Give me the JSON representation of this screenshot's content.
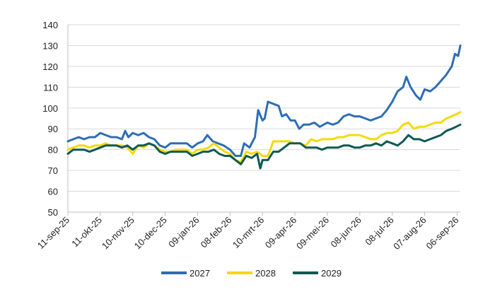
{
  "chart_data": {
    "type": "line",
    "ylim": [
      50,
      140
    ],
    "y_ticks": [
      50,
      60,
      70,
      80,
      90,
      100,
      110,
      120,
      130,
      140
    ],
    "x_range": [
      "2025-09-11",
      "2026-09-09"
    ],
    "x_ticks": [
      {
        "date": "2025-09-11",
        "label": "11-sep-25"
      },
      {
        "date": "2025-10-11",
        "label": "11-okt-25"
      },
      {
        "date": "2025-11-10",
        "label": "10-nov-25"
      },
      {
        "date": "2025-12-10",
        "label": "10-dec-25"
      },
      {
        "date": "2026-01-09",
        "label": "09-jan-26"
      },
      {
        "date": "2026-02-08",
        "label": "08-feb-26"
      },
      {
        "date": "2026-03-10",
        "label": "10-mrt-26"
      },
      {
        "date": "2026-04-09",
        "label": "09-apr-26"
      },
      {
        "date": "2026-05-09",
        "label": "09-mei-26"
      },
      {
        "date": "2026-06-08",
        "label": "08-jun-26"
      },
      {
        "date": "2026-07-08",
        "label": "08-jul-26"
      },
      {
        "date": "2026-08-07",
        "label": "07-aug-26"
      },
      {
        "date": "2026-09-06",
        "label": "06-sep-26"
      }
    ],
    "grid": "horizontal",
    "legend_position": "bottom",
    "series": [
      {
        "name": "2027",
        "color": "#2E6DB4",
        "points": [
          [
            "2025-09-11",
            84
          ],
          [
            "2025-09-16",
            85
          ],
          [
            "2025-09-21",
            86
          ],
          [
            "2025-09-26",
            85
          ],
          [
            "2025-10-01",
            86
          ],
          [
            "2025-10-06",
            86
          ],
          [
            "2025-10-11",
            88
          ],
          [
            "2025-10-16",
            87
          ],
          [
            "2025-10-21",
            86
          ],
          [
            "2025-10-26",
            86
          ],
          [
            "2025-10-31",
            85
          ],
          [
            "2025-11-03",
            89
          ],
          [
            "2025-11-06",
            86
          ],
          [
            "2025-11-10",
            88
          ],
          [
            "2025-11-15",
            87
          ],
          [
            "2025-11-20",
            88
          ],
          [
            "2025-11-25",
            86
          ],
          [
            "2025-11-30",
            85
          ],
          [
            "2025-12-05",
            82
          ],
          [
            "2025-12-10",
            81
          ],
          [
            "2025-12-15",
            83
          ],
          [
            "2025-12-20",
            83
          ],
          [
            "2025-12-25",
            83
          ],
          [
            "2025-12-30",
            83
          ],
          [
            "2026-01-04",
            81
          ],
          [
            "2026-01-09",
            83
          ],
          [
            "2026-01-14",
            84
          ],
          [
            "2026-01-18",
            87
          ],
          [
            "2026-01-23",
            84
          ],
          [
            "2026-01-28",
            83
          ],
          [
            "2026-02-02",
            82
          ],
          [
            "2026-02-08",
            80
          ],
          [
            "2026-02-13",
            77
          ],
          [
            "2026-02-18",
            77
          ],
          [
            "2026-02-21",
            83
          ],
          [
            "2026-02-26",
            81
          ],
          [
            "2026-03-03",
            86
          ],
          [
            "2026-03-06",
            99
          ],
          [
            "2026-03-10",
            94
          ],
          [
            "2026-03-12",
            95
          ],
          [
            "2026-03-15",
            103
          ],
          [
            "2026-03-20",
            102
          ],
          [
            "2026-03-25",
            101
          ],
          [
            "2026-03-28",
            96
          ],
          [
            "2026-04-01",
            97
          ],
          [
            "2026-04-05",
            94
          ],
          [
            "2026-04-09",
            94
          ],
          [
            "2026-04-13",
            90
          ],
          [
            "2026-04-17",
            92
          ],
          [
            "2026-04-22",
            92
          ],
          [
            "2026-04-27",
            93
          ],
          [
            "2026-05-02",
            91
          ],
          [
            "2026-05-09",
            93
          ],
          [
            "2026-05-14",
            92
          ],
          [
            "2026-05-19",
            93
          ],
          [
            "2026-05-24",
            96
          ],
          [
            "2026-05-29",
            97
          ],
          [
            "2026-06-03",
            96
          ],
          [
            "2026-06-08",
            96
          ],
          [
            "2026-06-13",
            95
          ],
          [
            "2026-06-18",
            94
          ],
          [
            "2026-06-23",
            95
          ],
          [
            "2026-06-28",
            96
          ],
          [
            "2026-07-03",
            99
          ],
          [
            "2026-07-08",
            103
          ],
          [
            "2026-07-13",
            108
          ],
          [
            "2026-07-18",
            110
          ],
          [
            "2026-07-21",
            115
          ],
          [
            "2026-07-25",
            110
          ],
          [
            "2026-07-30",
            106
          ],
          [
            "2026-08-03",
            104
          ],
          [
            "2026-08-07",
            109
          ],
          [
            "2026-08-12",
            108
          ],
          [
            "2026-08-17",
            110
          ],
          [
            "2026-08-22",
            113
          ],
          [
            "2026-08-27",
            116
          ],
          [
            "2026-09-01",
            120
          ],
          [
            "2026-09-04",
            126
          ],
          [
            "2026-09-07",
            125
          ],
          [
            "2026-09-09",
            130
          ]
        ]
      },
      {
        "name": "2028",
        "color": "#F5D90A",
        "points": [
          [
            "2025-09-11",
            80
          ],
          [
            "2025-09-16",
            81
          ],
          [
            "2025-09-21",
            82
          ],
          [
            "2025-09-26",
            82
          ],
          [
            "2025-10-01",
            81
          ],
          [
            "2025-10-06",
            82
          ],
          [
            "2025-10-11",
            82
          ],
          [
            "2025-10-16",
            83
          ],
          [
            "2025-10-21",
            82
          ],
          [
            "2025-10-26",
            82
          ],
          [
            "2025-10-31",
            82
          ],
          [
            "2025-11-05",
            81
          ],
          [
            "2025-11-10",
            78
          ],
          [
            "2025-11-15",
            82
          ],
          [
            "2025-11-20",
            81
          ],
          [
            "2025-11-25",
            83
          ],
          [
            "2025-11-30",
            82
          ],
          [
            "2025-12-05",
            80
          ],
          [
            "2025-12-10",
            79
          ],
          [
            "2025-12-15",
            79
          ],
          [
            "2025-12-20",
            80
          ],
          [
            "2025-12-25",
            80
          ],
          [
            "2025-12-30",
            80
          ],
          [
            "2026-01-04",
            78
          ],
          [
            "2026-01-09",
            80
          ],
          [
            "2026-01-14",
            80
          ],
          [
            "2026-01-19",
            81
          ],
          [
            "2026-01-24",
            83
          ],
          [
            "2026-01-29",
            81
          ],
          [
            "2026-02-03",
            79
          ],
          [
            "2026-02-08",
            78
          ],
          [
            "2026-02-13",
            75
          ],
          [
            "2026-02-18",
            74
          ],
          [
            "2026-02-23",
            79
          ],
          [
            "2026-02-28",
            78
          ],
          [
            "2026-03-05",
            79
          ],
          [
            "2026-03-10",
            77
          ],
          [
            "2026-03-15",
            77
          ],
          [
            "2026-03-20",
            84
          ],
          [
            "2026-03-25",
            84
          ],
          [
            "2026-03-30",
            84
          ],
          [
            "2026-04-04",
            84
          ],
          [
            "2026-04-09",
            83
          ],
          [
            "2026-04-14",
            83
          ],
          [
            "2026-04-19",
            82
          ],
          [
            "2026-04-24",
            85
          ],
          [
            "2026-04-29",
            84
          ],
          [
            "2026-05-04",
            85
          ],
          [
            "2026-05-09",
            85
          ],
          [
            "2026-05-14",
            85
          ],
          [
            "2026-05-19",
            86
          ],
          [
            "2026-05-24",
            86
          ],
          [
            "2026-05-29",
            87
          ],
          [
            "2026-06-03",
            87
          ],
          [
            "2026-06-08",
            87
          ],
          [
            "2026-06-13",
            86
          ],
          [
            "2026-06-18",
            85
          ],
          [
            "2026-06-23",
            85
          ],
          [
            "2026-06-28",
            87
          ],
          [
            "2026-07-03",
            88
          ],
          [
            "2026-07-08",
            88
          ],
          [
            "2026-07-13",
            89
          ],
          [
            "2026-07-18",
            92
          ],
          [
            "2026-07-23",
            93
          ],
          [
            "2026-07-28",
            90
          ],
          [
            "2026-08-02",
            91
          ],
          [
            "2026-08-07",
            91
          ],
          [
            "2026-08-12",
            92
          ],
          [
            "2026-08-17",
            93
          ],
          [
            "2026-08-22",
            93
          ],
          [
            "2026-08-27",
            95
          ],
          [
            "2026-09-01",
            96
          ],
          [
            "2026-09-05",
            97
          ],
          [
            "2026-09-09",
            98
          ]
        ]
      },
      {
        "name": "2029",
        "color": "#0E5A52",
        "points": [
          [
            "2025-09-11",
            78
          ],
          [
            "2025-09-16",
            80
          ],
          [
            "2025-09-21",
            80
          ],
          [
            "2025-09-26",
            80
          ],
          [
            "2025-10-01",
            79
          ],
          [
            "2025-10-06",
            80
          ],
          [
            "2025-10-11",
            81
          ],
          [
            "2025-10-16",
            82
          ],
          [
            "2025-10-21",
            82
          ],
          [
            "2025-10-26",
            82
          ],
          [
            "2025-10-31",
            81
          ],
          [
            "2025-11-05",
            82
          ],
          [
            "2025-11-10",
            80
          ],
          [
            "2025-11-15",
            82
          ],
          [
            "2025-11-20",
            82
          ],
          [
            "2025-11-25",
            83
          ],
          [
            "2025-11-30",
            82
          ],
          [
            "2025-12-05",
            79
          ],
          [
            "2025-12-10",
            78
          ],
          [
            "2025-12-15",
            79
          ],
          [
            "2025-12-20",
            79
          ],
          [
            "2025-12-25",
            79
          ],
          [
            "2025-12-30",
            79
          ],
          [
            "2026-01-04",
            77
          ],
          [
            "2026-01-09",
            78
          ],
          [
            "2026-01-14",
            79
          ],
          [
            "2026-01-19",
            79
          ],
          [
            "2026-01-24",
            80
          ],
          [
            "2026-01-29",
            78
          ],
          [
            "2026-02-03",
            77
          ],
          [
            "2026-02-08",
            77
          ],
          [
            "2026-02-13",
            75
          ],
          [
            "2026-02-18",
            73
          ],
          [
            "2026-02-23",
            77
          ],
          [
            "2026-02-28",
            76
          ],
          [
            "2026-03-05",
            78
          ],
          [
            "2026-03-08",
            71
          ],
          [
            "2026-03-10",
            75
          ],
          [
            "2026-03-15",
            75
          ],
          [
            "2026-03-20",
            79
          ],
          [
            "2026-03-25",
            79
          ],
          [
            "2026-03-30",
            81
          ],
          [
            "2026-04-04",
            83
          ],
          [
            "2026-04-09",
            83
          ],
          [
            "2026-04-14",
            83
          ],
          [
            "2026-04-19",
            81
          ],
          [
            "2026-04-24",
            81
          ],
          [
            "2026-04-29",
            81
          ],
          [
            "2026-05-04",
            80
          ],
          [
            "2026-05-09",
            81
          ],
          [
            "2026-05-14",
            81
          ],
          [
            "2026-05-19",
            81
          ],
          [
            "2026-05-24",
            82
          ],
          [
            "2026-05-29",
            82
          ],
          [
            "2026-06-03",
            81
          ],
          [
            "2026-06-08",
            81
          ],
          [
            "2026-06-13",
            82
          ],
          [
            "2026-06-18",
            82
          ],
          [
            "2026-06-23",
            83
          ],
          [
            "2026-06-28",
            82
          ],
          [
            "2026-07-03",
            84
          ],
          [
            "2026-07-08",
            83
          ],
          [
            "2026-07-13",
            82
          ],
          [
            "2026-07-18",
            84
          ],
          [
            "2026-07-23",
            87
          ],
          [
            "2026-07-28",
            85
          ],
          [
            "2026-08-02",
            85
          ],
          [
            "2026-08-07",
            84
          ],
          [
            "2026-08-12",
            85
          ],
          [
            "2026-08-17",
            86
          ],
          [
            "2026-08-22",
            87
          ],
          [
            "2026-08-27",
            89
          ],
          [
            "2026-09-01",
            90
          ],
          [
            "2026-09-05",
            91
          ],
          [
            "2026-09-09",
            92
          ]
        ]
      }
    ]
  }
}
